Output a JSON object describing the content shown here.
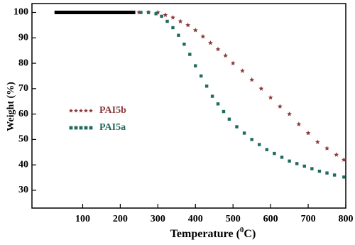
{
  "chart_data": {
    "type": "line",
    "y_label": "Weight (%)",
    "x_label_parts": [
      "Temperature (",
      "0",
      "C)"
    ],
    "xlim": [
      -35,
      800
    ],
    "ylim": [
      23,
      103.5
    ],
    "xticks": [
      100,
      200,
      300,
      400,
      500,
      600,
      700,
      800
    ],
    "yticks": [
      30,
      40,
      50,
      60,
      70,
      80,
      90,
      100
    ],
    "legend": "left",
    "series": [
      {
        "color": "#000000",
        "marker": "none",
        "x": [
          25,
          240
        ],
        "values": [
          100,
          100
        ]
      },
      {
        "name": "PAI5b",
        "color": "#8b3a3a",
        "marker": "star",
        "x": [
          250,
          275,
          300,
          320,
          340,
          360,
          380,
          400,
          420,
          440,
          460,
          480,
          500,
          525,
          550,
          575,
          600,
          625,
          650,
          675,
          700,
          725,
          750,
          775,
          795
        ],
        "values": [
          100,
          100,
          100,
          99,
          98,
          96.5,
          95,
          93,
          90.5,
          88,
          85.5,
          83,
          80,
          77,
          73.5,
          70,
          66.5,
          63,
          60,
          56,
          52.5,
          49,
          46.5,
          44,
          42
        ]
      },
      {
        "name": "PAI5a",
        "color": "#1f6b5e",
        "marker": "square",
        "x": [
          255,
          275,
          295,
          310,
          325,
          340,
          355,
          370,
          385,
          400,
          415,
          430,
          445,
          460,
          475,
          490,
          510,
          530,
          550,
          570,
          590,
          610,
          630,
          650,
          670,
          690,
          710,
          730,
          750,
          770,
          795
        ],
        "values": [
          100,
          100,
          99.5,
          98.5,
          96.5,
          94,
          91,
          87.5,
          83.5,
          79,
          75,
          71,
          67,
          64,
          61,
          58,
          55,
          52.5,
          50,
          48,
          46,
          44.5,
          43,
          41.5,
          40.5,
          39.5,
          38.5,
          37.5,
          36.8,
          36,
          35.2
        ]
      }
    ]
  }
}
